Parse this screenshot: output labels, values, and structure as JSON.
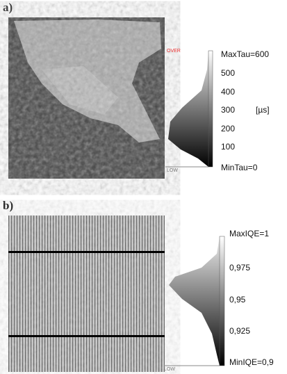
{
  "panel_a": {
    "label": "a)",
    "over": "OVER",
    "low": "LOW",
    "max": "MaxTau=600",
    "ticks": [
      "500",
      "400",
      "300",
      "200",
      "100"
    ],
    "unit": "[µs]",
    "min": "MinTau=0"
  },
  "panel_b": {
    "label": "b)",
    "low": "LOW",
    "max": "MaxIQE=1",
    "ticks": [
      "0,975",
      "0,95",
      "0,925"
    ],
    "min": "MinIQE=0,9"
  }
}
